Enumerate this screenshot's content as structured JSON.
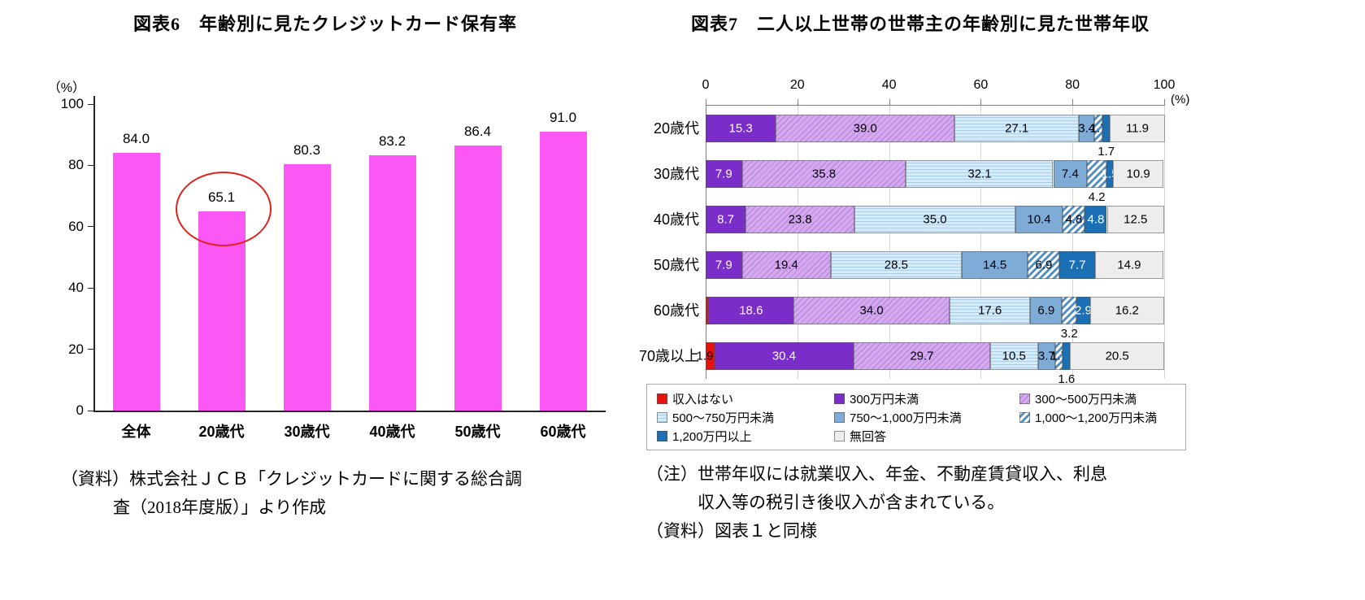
{
  "chart_data": [
    {
      "type": "bar",
      "title": "図表6　年齢別に見たクレジットカード保有率",
      "unit": "（%）",
      "categories": [
        "全体",
        "20歳代",
        "30歳代",
        "40歳代",
        "50歳代",
        "60歳代"
      ],
      "values": [
        84.0,
        65.1,
        80.3,
        83.2,
        86.4,
        91.0
      ],
      "value_labels": [
        "84.0",
        "65.1",
        "80.3",
        "83.2",
        "86.4",
        "91.0"
      ],
      "ylim": [
        0,
        100
      ],
      "yticks": [
        0,
        20,
        40,
        60,
        80,
        100
      ],
      "grid": false,
      "bar_color": "#FB57F5",
      "highlight": {
        "shape": "ellipse",
        "category": "20歳代",
        "color": "#DF231D"
      }
    },
    {
      "type": "bar",
      "orientation": "horizontal",
      "stacked": true,
      "title": "図表7　二人以上世帯の世帯主の年齢別に見た世帯年収",
      "unit": "(%)",
      "categories": [
        "20歳代",
        "30歳代",
        "40歳代",
        "50歳代",
        "60歳代",
        "70歳以上"
      ],
      "xlim": [
        0,
        100
      ],
      "xticks": [
        0,
        20,
        40,
        60,
        80,
        100
      ],
      "grid": true,
      "legend_position": "bottom",
      "series": [
        {
          "name": "収入はない",
          "color": "#E8110D",
          "pattern": "solid",
          "text_color": "#000000",
          "values": [
            0,
            0,
            0,
            0,
            0.6,
            1.9
          ],
          "labels": [
            "",
            "",
            "",
            "",
            "",
            "1.9"
          ],
          "label_pos": [
            "in",
            "in",
            "in",
            "in",
            "in",
            "left"
          ]
        },
        {
          "name": "300万円未満",
          "color": "#7B2DC9",
          "pattern": "solid",
          "text_color": "#FFFFFF",
          "values": [
            15.3,
            7.9,
            8.7,
            7.9,
            18.6,
            30.4
          ],
          "labels": [
            "15.3",
            "7.9",
            "8.7",
            "7.9",
            "18.6",
            "30.4"
          ]
        },
        {
          "name": "300～500万円未満",
          "color": "#D4A9EE",
          "stripe": "#B27FDB",
          "pattern": "diag-thin",
          "text_color": "#000000",
          "values": [
            39.0,
            35.8,
            23.8,
            19.4,
            34.0,
            29.7
          ],
          "labels": [
            "39.0",
            "35.8",
            "23.8",
            "19.4",
            "34.0",
            "29.7"
          ]
        },
        {
          "name": "500～750万円未満",
          "color": "#D8EAF5",
          "stripe": "#A9CEE6",
          "pattern": "horiz",
          "text_color": "#000000",
          "values": [
            27.1,
            32.1,
            35.0,
            28.5,
            17.6,
            10.5
          ],
          "labels": [
            "27.1",
            "32.1",
            "35.0",
            "28.5",
            "17.6",
            "10.5"
          ]
        },
        {
          "name": "750～1,000万円未満",
          "color": "#7FACD7",
          "pattern": "solid",
          "text_color": "#000000",
          "values": [
            3.4,
            7.4,
            10.4,
            14.5,
            6.9,
            3.7
          ],
          "labels": [
            "3.4",
            "7.4",
            "10.4",
            "14.5",
            "6.9",
            "3.7"
          ]
        },
        {
          "name": "1,000～1,200万円未満",
          "color": "#4E8EC7",
          "pattern": "diag-bold",
          "text_color": "#000000",
          "values": [
            1.7,
            4.2,
            4.8,
            6.9,
            3.2,
            1.7
          ],
          "labels": [
            "1.7",
            "4.2",
            "4.8",
            "6.9",
            "3.2",
            "1.7"
          ],
          "label_pos": [
            "in",
            "below",
            "in",
            "in",
            "below",
            "in"
          ]
        },
        {
          "name": "1,200万円以上",
          "color": "#1B6FB5",
          "pattern": "solid",
          "text_color": "#FFFFFF",
          "values": [
            1.7,
            1.5,
            4.8,
            7.7,
            2.9,
            1.6
          ],
          "labels": [
            "1.7",
            "1.5",
            "4.8",
            "7.7",
            "2.9",
            "1.6"
          ],
          "label_pos": [
            "below",
            "in",
            "in",
            "in",
            "in",
            "below"
          ]
        },
        {
          "name": "無回答",
          "color": "#EDEDED",
          "pattern": "solid",
          "text_color": "#000000",
          "values": [
            11.9,
            10.9,
            12.5,
            14.9,
            16.2,
            20.5
          ],
          "labels": [
            "11.9",
            "10.9",
            "12.5",
            "14.9",
            "16.2",
            "20.5"
          ]
        }
      ]
    }
  ],
  "notes": {
    "left": [
      "（資料）株式会社ＪＣＢ「クレジットカードに関する総合調",
      "査（2018年度版）」より作成"
    ],
    "right": [
      "（注）世帯年収には就業収入、年金、不動産賃貸収入、利息",
      "収入等の税引き後収入が含まれている。",
      "（資料）図表１と同様"
    ]
  }
}
